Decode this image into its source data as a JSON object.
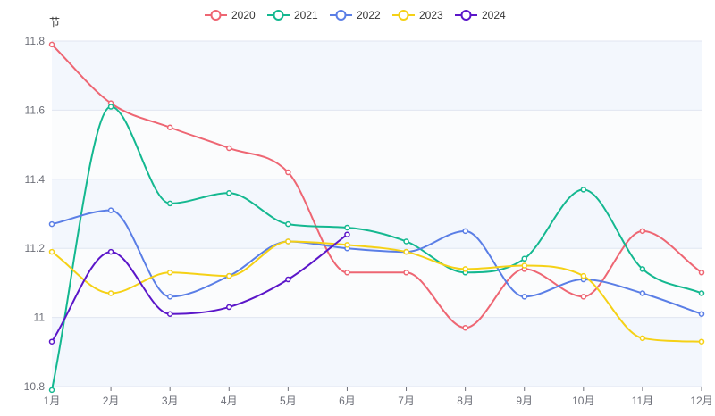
{
  "chart_data": {
    "type": "line",
    "title": "",
    "ylabel": "节",
    "xlabel": "",
    "ylim": [
      10.8,
      11.8
    ],
    "y_ticks": [
      "10.8",
      "11",
      "11.2",
      "11.4",
      "11.6",
      "11.8"
    ],
    "y_tick_values": [
      10.8,
      11.0,
      11.2,
      11.4,
      11.6,
      11.8
    ],
    "categories": [
      "1月",
      "2月",
      "3月",
      "4月",
      "5月",
      "6月",
      "7月",
      "8月",
      "9月",
      "10月",
      "11月",
      "12月"
    ],
    "legend_position": "top-center",
    "smooth": true,
    "band_colors": [
      "#f3f7fd",
      "#fbfcfd"
    ],
    "series": [
      {
        "name": "2020",
        "color": "#ee6673",
        "values": [
          11.79,
          11.62,
          11.55,
          11.49,
          11.42,
          11.13,
          11.13,
          10.97,
          11.14,
          11.06,
          11.25,
          11.13
        ]
      },
      {
        "name": "2021",
        "color": "#14b890",
        "values": [
          10.79,
          11.61,
          11.33,
          11.36,
          11.27,
          11.26,
          11.22,
          11.13,
          11.17,
          11.37,
          11.14,
          11.07
        ]
      },
      {
        "name": "2022",
        "color": "#5a7ee6",
        "values": [
          11.27,
          11.31,
          11.06,
          11.12,
          11.22,
          11.2,
          11.19,
          11.25,
          11.06,
          11.11,
          11.07,
          11.01
        ]
      },
      {
        "name": "2023",
        "color": "#f5d116",
        "values": [
          11.19,
          11.07,
          11.13,
          11.12,
          11.22,
          11.21,
          11.19,
          11.14,
          11.15,
          11.12,
          10.94,
          10.93
        ]
      },
      {
        "name": "2024",
        "color": "#5b16c9",
        "values": [
          10.93,
          11.19,
          11.01,
          11.03,
          11.11,
          11.24,
          null,
          null,
          null,
          null,
          null,
          null
        ]
      }
    ]
  }
}
